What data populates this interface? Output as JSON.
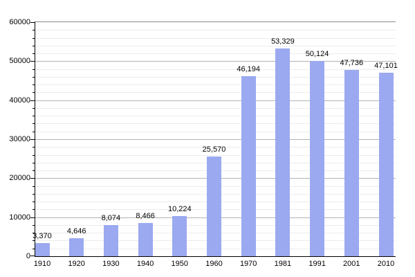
{
  "chart_data": {
    "type": "bar",
    "title": "",
    "xlabel": "",
    "ylabel": "",
    "categories": [
      "1910",
      "1920",
      "1930",
      "1940",
      "1950",
      "1960",
      "1970",
      "1981",
      "1991",
      "2001",
      "2010"
    ],
    "values": [
      3370,
      4646,
      8074,
      8466,
      10224,
      25570,
      46194,
      53329,
      50124,
      47736,
      47101
    ],
    "value_labels": [
      "3,370",
      "4,646",
      "8,074",
      "8,466",
      "10,224",
      "25,570",
      "46,194",
      "53,329",
      "50,124",
      "47,736",
      "47,101"
    ],
    "ylim": [
      0,
      60000
    ],
    "major_step": 10000,
    "minor_step": 2000,
    "ytick_labels": [
      "0",
      "10000",
      "20000",
      "30000",
      "40000",
      "50000",
      "60000"
    ],
    "grid": "on",
    "legend": "none",
    "colors": {
      "bar_fill": "#9ba9f0",
      "major_grid": "#b3b3b3",
      "minor_grid": "#ececec",
      "top_border": "#888888",
      "axis": "#000000",
      "text": "#000000",
      "background": "#ffffff"
    }
  }
}
